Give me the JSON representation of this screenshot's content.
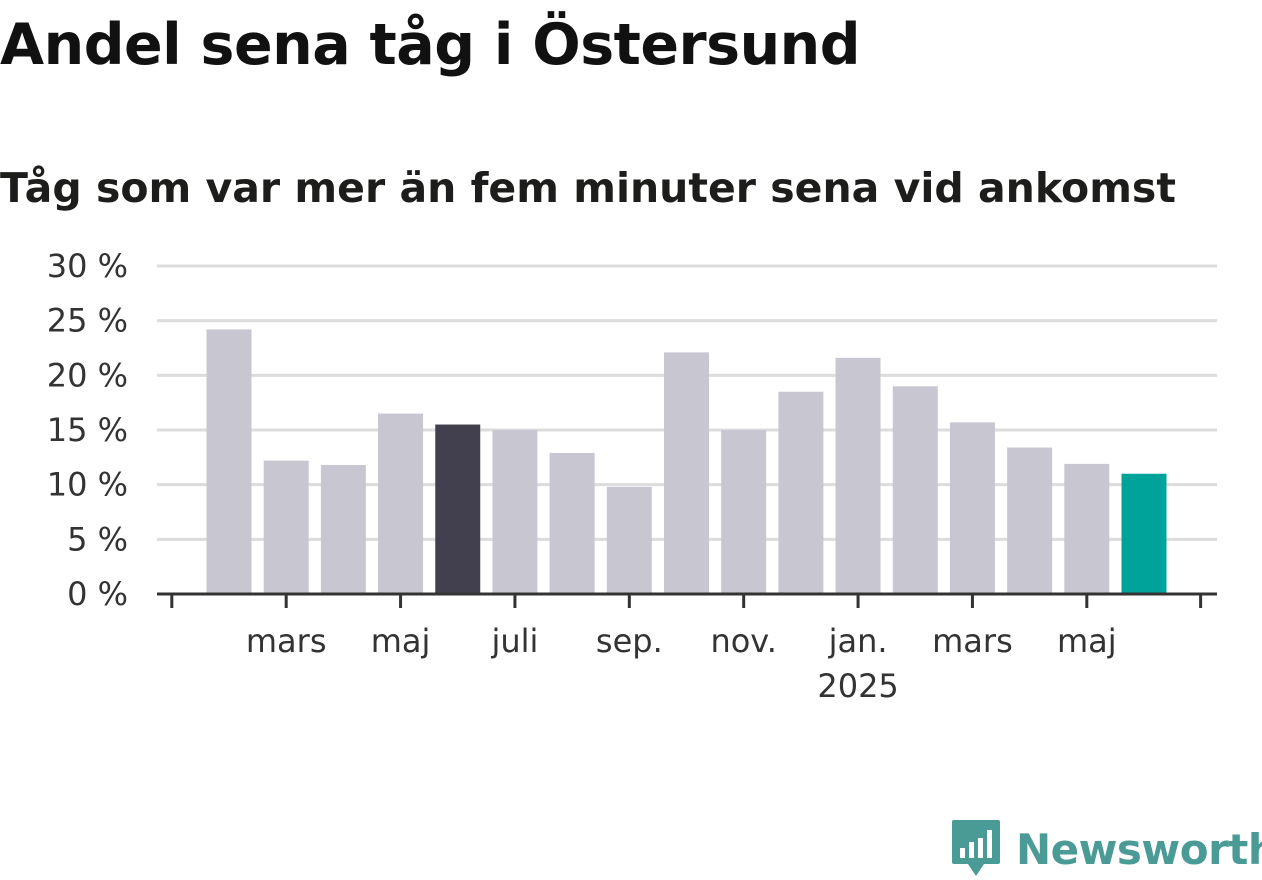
{
  "title": "Andel sena tåg i Östersund",
  "subtitle": "Tåg som var mer än fem minuter sena vid ankomst",
  "brand": {
    "name": "Newsworthy",
    "icon": "newsworthy-logo-icon",
    "color": "#4a9a96"
  },
  "chart_data": {
    "type": "bar",
    "title": "Andel sena tåg i Östersund",
    "subtitle": "Tåg som var mer än fem minuter sena vid ankomst",
    "unit": "%",
    "ylim": [
      0,
      30
    ],
    "yticks": [
      0,
      5,
      10,
      15,
      20,
      25,
      30
    ],
    "ytick_labels": [
      "0 %",
      "5 %",
      "10 %",
      "15 %",
      "20 %",
      "25 %",
      "30 %"
    ],
    "grid": true,
    "categories": [
      "2024-02",
      "2024-03",
      "2024-04",
      "2024-05",
      "2024-06",
      "2024-07",
      "2024-08",
      "2024-09",
      "2024-10",
      "2024-11",
      "2024-12",
      "2025-01",
      "2025-02",
      "2025-03",
      "2025-04",
      "2025-05",
      "2025-06"
    ],
    "values": [
      24.2,
      12.2,
      11.8,
      16.5,
      15.5,
      15.0,
      12.9,
      9.8,
      22.1,
      15.0,
      18.5,
      21.6,
      19.0,
      15.7,
      13.4,
      11.9,
      11.0
    ],
    "highlights": {
      "4": "#42404e",
      "16": "#00a39a"
    },
    "bar_color": "#c8c7d1",
    "x_ticks": [
      {
        "label": "mars",
        "index": 1
      },
      {
        "label": "maj",
        "index": 3
      },
      {
        "label": "juli",
        "index": 5
      },
      {
        "label": "sep.",
        "index": 7
      },
      {
        "label": "nov.",
        "index": 9
      },
      {
        "label": "jan.",
        "index": 11,
        "sublabel": "2025"
      },
      {
        "label": "mars",
        "index": 13
      },
      {
        "label": "maj",
        "index": 15
      }
    ]
  }
}
